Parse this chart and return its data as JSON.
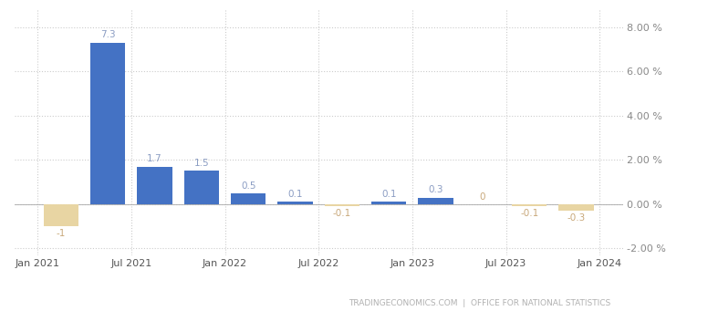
{
  "x_positions": [
    0,
    1,
    2,
    3,
    4,
    5,
    6,
    7,
    8,
    9,
    10,
    11
  ],
  "values": [
    -1,
    7.3,
    1.7,
    1.5,
    0.5,
    0.1,
    -0.1,
    0.1,
    0.3,
    0,
    -0.1,
    -0.3
  ],
  "labels": [
    "-1",
    "7.3",
    "1.7",
    "1.5",
    "0.5",
    "0.1",
    "-0.1",
    "0.1",
    "0.3",
    "0",
    "-0.1",
    "-0.3"
  ],
  "bar_color_positive": "#4472C4",
  "bar_color_negative": "#E8D5A3",
  "yticks": [
    -2,
    0,
    2,
    4,
    6,
    8
  ],
  "ytick_labels": [
    "-2.00 %",
    "0.00 %",
    "2.00 %",
    "4.00 %",
    "6.00 %",
    "8.00 %"
  ],
  "xtick_positions": [
    -0.5,
    1.5,
    3.5,
    5.5,
    7.5,
    9.5,
    11.5
  ],
  "xtick_labels": [
    "Jan 2021",
    "Jul 2021",
    "Jan 2022",
    "Jul 2022",
    "Jan 2023",
    "Jul 2023",
    "Jan 2024"
  ],
  "ylim": [
    -2.3,
    8.8
  ],
  "xlim": [
    -1.0,
    12.0
  ],
  "watermark": "TRADINGECONOMICS.COM  |  OFFICE FOR NATIONAL STATISTICS",
  "background_color": "#ffffff",
  "grid_color": "#cccccc",
  "label_color_positive": "#8B9DC3",
  "label_color_negative": "#C8A87A",
  "watermark_color": "#b0b0b0",
  "bar_width": 0.75
}
